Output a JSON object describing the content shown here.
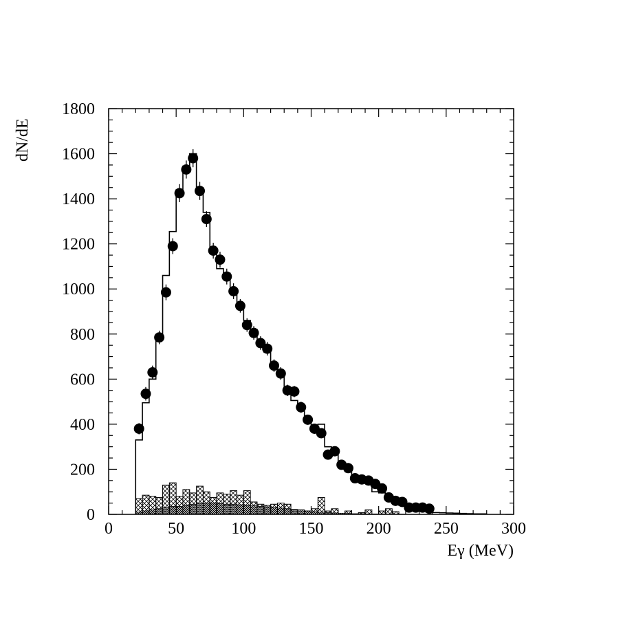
{
  "chart_data": {
    "type": "histogram-with-points",
    "xlabel": "Eγ (MeV)",
    "ylabel": "dN/dE",
    "xlim": [
      0,
      300
    ],
    "ylim": [
      0,
      1800
    ],
    "x_ticks": [
      "0",
      "50",
      "100",
      "150",
      "200",
      "250",
      "300"
    ],
    "y_ticks": [
      "0",
      "200",
      "400",
      "600",
      "800",
      "1000",
      "1200",
      "1400",
      "1600",
      "1800"
    ],
    "grid": false,
    "legend": "none",
    "bin_width": 5,
    "series": [
      {
        "kind": "points",
        "x": [
          22.5,
          27.5,
          32.5,
          37.5,
          42.5,
          47.5,
          52.5,
          57.5,
          62.5,
          67.5,
          72.5,
          77.5,
          82.5,
          87.5,
          92.5,
          97.5,
          102.5,
          107.5,
          112.5,
          117.5,
          122.5,
          127.5,
          132.5,
          137.5,
          142.5,
          147.5,
          152.5,
          157.5,
          162.5,
          167.5,
          172.5,
          177.5,
          182.5,
          187.5,
          192.5,
          197.5,
          202.5,
          207.5,
          212.5,
          217.5,
          222.5,
          227.5,
          232.5,
          237.5
        ],
        "values": [
          380,
          535,
          630,
          785,
          985,
          1190,
          1425,
          1530,
          1580,
          1435,
          1310,
          1170,
          1130,
          1055,
          990,
          925,
          840,
          805,
          760,
          735,
          660,
          625,
          550,
          545,
          475,
          420,
          380,
          360,
          265,
          280,
          220,
          205,
          160,
          155,
          150,
          135,
          115,
          75,
          60,
          55,
          30,
          30,
          30,
          25
        ],
        "errors": [
          25,
          30,
          30,
          30,
          35,
          35,
          40,
          40,
          40,
          40,
          35,
          35,
          35,
          35,
          35,
          30,
          30,
          30,
          30,
          30,
          28,
          28,
          25,
          25,
          25,
          22,
          22,
          20,
          18,
          18,
          16,
          16,
          14,
          14,
          14,
          13,
          12,
          10,
          9,
          9,
          7,
          7,
          7,
          6
        ]
      },
      {
        "kind": "histogram",
        "x_edges_start": 20,
        "values": [
          330,
          495,
          600,
          780,
          1060,
          1255,
          1440,
          1545,
          1600,
          1450,
          1340,
          1175,
          1090,
          1070,
          1000,
          930,
          860,
          820,
          760,
          720,
          660,
          620,
          560,
          505,
          465,
          425,
          390,
          400,
          300,
          265,
          230,
          190,
          165,
          150,
          140,
          100,
          95,
          70,
          50,
          40,
          30,
          25,
          15,
          10,
          8,
          7,
          6,
          5,
          4,
          3,
          2,
          2
        ]
      },
      {
        "kind": "histogram-crosshatch",
        "x_edges_start": 20,
        "values": [
          70,
          85,
          80,
          75,
          130,
          140,
          80,
          110,
          95,
          125,
          100,
          75,
          95,
          90,
          105,
          85,
          105,
          55,
          45,
          40,
          45,
          50,
          45,
          20,
          20,
          15,
          25,
          75,
          15,
          25,
          0,
          15,
          0,
          8,
          20,
          0,
          15,
          25,
          12,
          0
        ]
      },
      {
        "kind": "histogram-dense",
        "x_edges_start": 20,
        "values": [
          10,
          15,
          20,
          25,
          30,
          35,
          35,
          40,
          45,
          50,
          50,
          50,
          48,
          45,
          45,
          42,
          40,
          38,
          35,
          33,
          30,
          28,
          25,
          22,
          20,
          15,
          12,
          10,
          8,
          6,
          5,
          4,
          3,
          3,
          2,
          2,
          2,
          1,
          1,
          1
        ]
      }
    ]
  }
}
